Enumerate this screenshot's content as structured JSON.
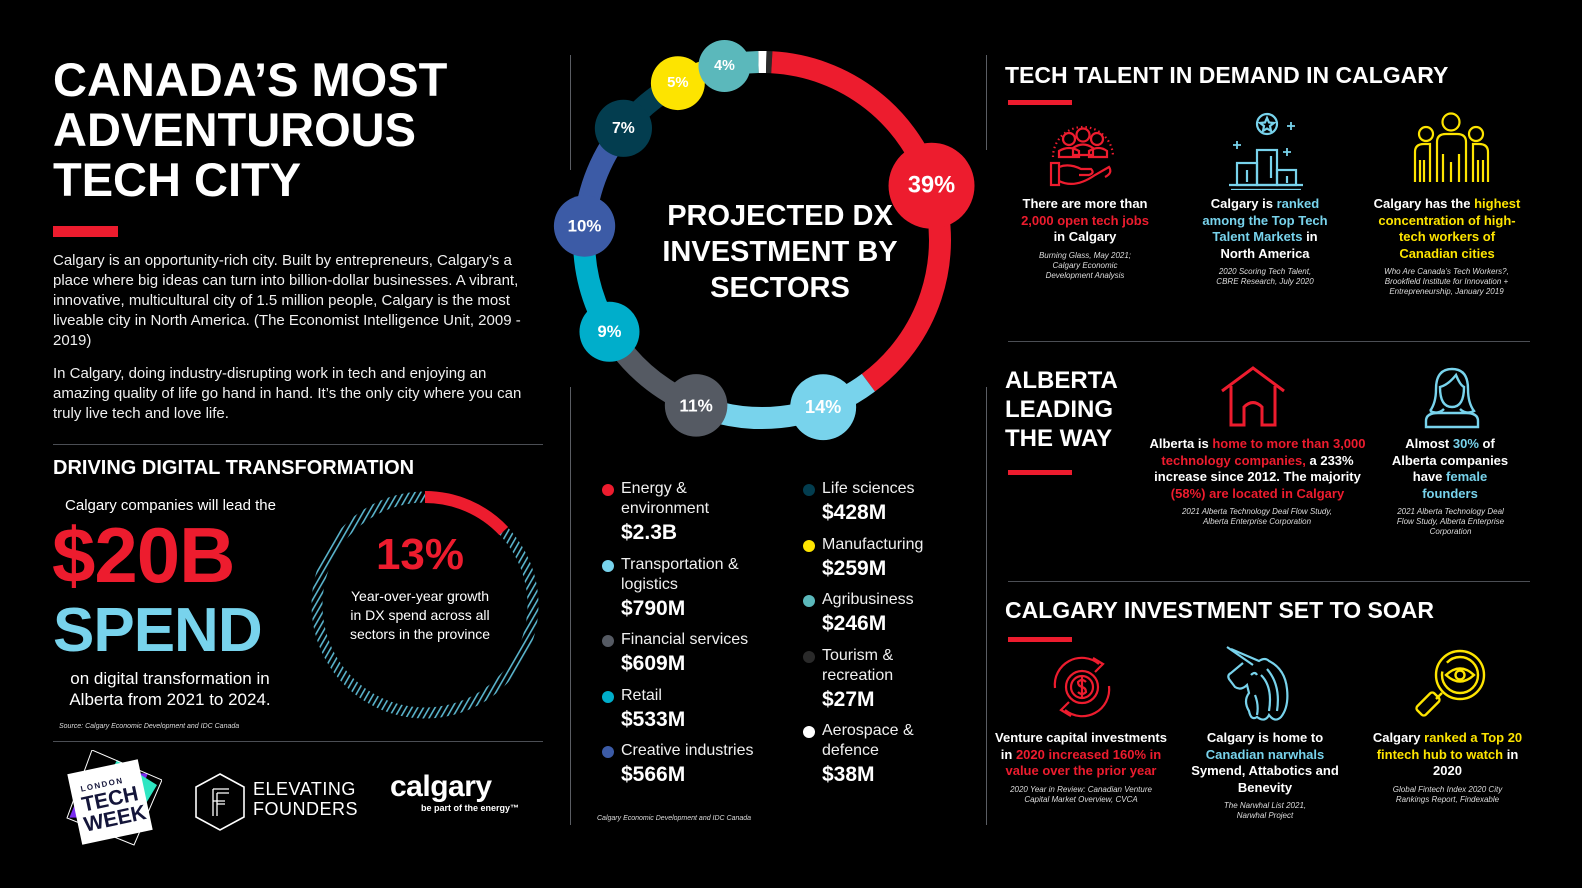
{
  "colors": {
    "red": "#ed1c2e",
    "light_blue": "#78d3ec",
    "yellow": "#fde400",
    "teal": "#00aecb",
    "blue": "#3c5ba6",
    "dark_teal": "#033d4f",
    "grey": "#555a63",
    "agri_teal": "#5bb8bb",
    "tourism": "#2a2a2a",
    "aerospace": "#ffffff"
  },
  "header": {
    "title_lines": [
      "CANADA’S MOST",
      "ADVENTUROUS",
      "TECH CITY"
    ]
  },
  "intro": {
    "paragraph_1": "Calgary is an opportunity-rich city. Built by entrepreneurs, Calgary’s a place where big ideas can turn into billion-dollar businesses. A vibrant, innovative, multicultural city of 1.5 million people, Calgary is the most liveable city in North America. (The Economist Intelligence Unit, 2009 - 2019)",
    "paragraph_2": "In Calgary, doing industry-disrupting work in tech and enjoying an amazing quality of life go hand in hand. It’s the only city where you can truly live tech and love life."
  },
  "digital": {
    "title": "DRIVING DIGITAL TRANSFORMATION",
    "lead": "Calgary companies will lead the",
    "amount": "$20B",
    "spend": "SPEND",
    "on_text": "on digital transformation in Alberta from 2021 to 2024.",
    "source": "Source: Calgary Economic Development and IDC Canada",
    "growth_pct": "13%",
    "growth_value": 13,
    "growth_text": "Year-over-year growth in DX spend across all sectors in the province"
  },
  "logos": {
    "ltw_line1": "LONDON",
    "ltw_line2": "TECH",
    "ltw_line3": "WEEK",
    "ef_line1": "ELEVATING",
    "ef_line2": "FOUNDERS",
    "ef_mark": "F",
    "calgary": "calgary",
    "calgary_tag": "be part of the energy™"
  },
  "chart_data": {
    "type": "pie",
    "title": "PROJECTED DX INVESTMENT BY SECTORS",
    "source": "Calgary Economic Development and IDC Canada",
    "series": [
      {
        "name": "Energy & environment",
        "value_label": "$2.3B",
        "value": 2300,
        "percent": 39,
        "pct_label": "39%",
        "color": "#ed1c2e"
      },
      {
        "name": "Transportation & logistics",
        "value_label": "$790M",
        "value": 790,
        "percent": 14,
        "pct_label": "14%",
        "color": "#78d3ec"
      },
      {
        "name": "Financial services",
        "value_label": "$609M",
        "value": 609,
        "percent": 11,
        "pct_label": "11%",
        "color": "#555a63"
      },
      {
        "name": "Retail",
        "value_label": "$533M",
        "value": 533,
        "percent": 9,
        "pct_label": "9%",
        "color": "#00aecb"
      },
      {
        "name": "Creative industries",
        "value_label": "$566M",
        "value": 566,
        "percent": 10,
        "pct_label": "10%",
        "color": "#3c5ba6"
      },
      {
        "name": "Life sciences",
        "value_label": "$428M",
        "value": 428,
        "percent": 7,
        "pct_label": "7%",
        "color": "#033d4f"
      },
      {
        "name": "Manufacturing",
        "value_label": "$259M",
        "value": 259,
        "percent": 5,
        "pct_label": "5%",
        "color": "#fde400"
      },
      {
        "name": "Agribusiness",
        "value_label": "$246M",
        "value": 246,
        "percent": 4,
        "pct_label": "4%",
        "color": "#5bb8bb"
      },
      {
        "name": "Tourism & recreation",
        "value_label": "$27M",
        "value": 27,
        "percent": 0.5,
        "pct_label": "",
        "color": "#2a2a2a"
      },
      {
        "name": "Aerospace & defence",
        "value_label": "$38M",
        "value": 38,
        "percent": 0.7,
        "pct_label": "",
        "color": "#ffffff"
      }
    ]
  },
  "talent": {
    "title": "TECH TALENT IN DEMAND IN CALGARY",
    "items": [
      {
        "icon": "hand-people-icon",
        "parts": [
          "There are more than ",
          "2,000 open tech jobs",
          " in Calgary"
        ],
        "source": "Burning Glass, May 2021; Calgary Economic Development Analysis"
      },
      {
        "icon": "podium-star-icon",
        "parts": [
          "Calgary is ",
          "ranked among the Top Tech Talent Markets",
          " in North America"
        ],
        "source": "2020 Scoring Tech Talent, CBRE Research, July 2020"
      },
      {
        "icon": "people-group-icon",
        "parts": [
          "Calgary has the ",
          "highest concentration of high-tech workers of Canadian cities",
          ""
        ],
        "source": "Who Are Canada’s Tech Workers?, Brookfield Institute for Innovation + Entrepreneurship, January 2019"
      }
    ]
  },
  "alberta": {
    "title_lines": [
      "ALBERTA",
      "LEADING",
      "THE WAY"
    ],
    "items": [
      {
        "icon": "house-icon",
        "p1": "Alberta is ",
        "p2": "home to more than 3,000 technology companies,",
        "p3": " a 233% increase since 2012. The majority ",
        "p4": "(58%) are located in Calgary",
        "source": "2021 Alberta Technology Deal Flow Study, Alberta Enterprise Corporation"
      },
      {
        "icon": "woman-icon",
        "p1": "Almost ",
        "p2": "30%",
        "p3": " of Alberta companies have ",
        "p4": "female founders",
        "source": "2021 Alberta Technology Deal Flow Study, Alberta Enterprise Corporation"
      }
    ]
  },
  "investment": {
    "title": "CALGARY INVESTMENT SET TO SOAR",
    "items": [
      {
        "icon": "dollar-cycle-icon",
        "p1": "Venture capital investments in ",
        "p2": "2020 increased 160% in value over the prior year",
        "p3": "",
        "source": "2020 Year in Review: Canadian Venture Capital Market Overview, CVCA"
      },
      {
        "icon": "unicorn-icon",
        "p1": "Calgary is home to ",
        "p2": "Canadian narwhals",
        "p3": " Symend, Attabotics and Benevity",
        "source": "The Narwhal List 2021, Narwhal Project"
      },
      {
        "icon": "magnifier-eye-icon",
        "p1": "Calgary ",
        "p2": "ranked a Top 20 fintech hub to watch",
        "p3": " in 2020",
        "source": "Global Fintech Index 2020 City Rankings Report, Findexable"
      }
    ]
  }
}
